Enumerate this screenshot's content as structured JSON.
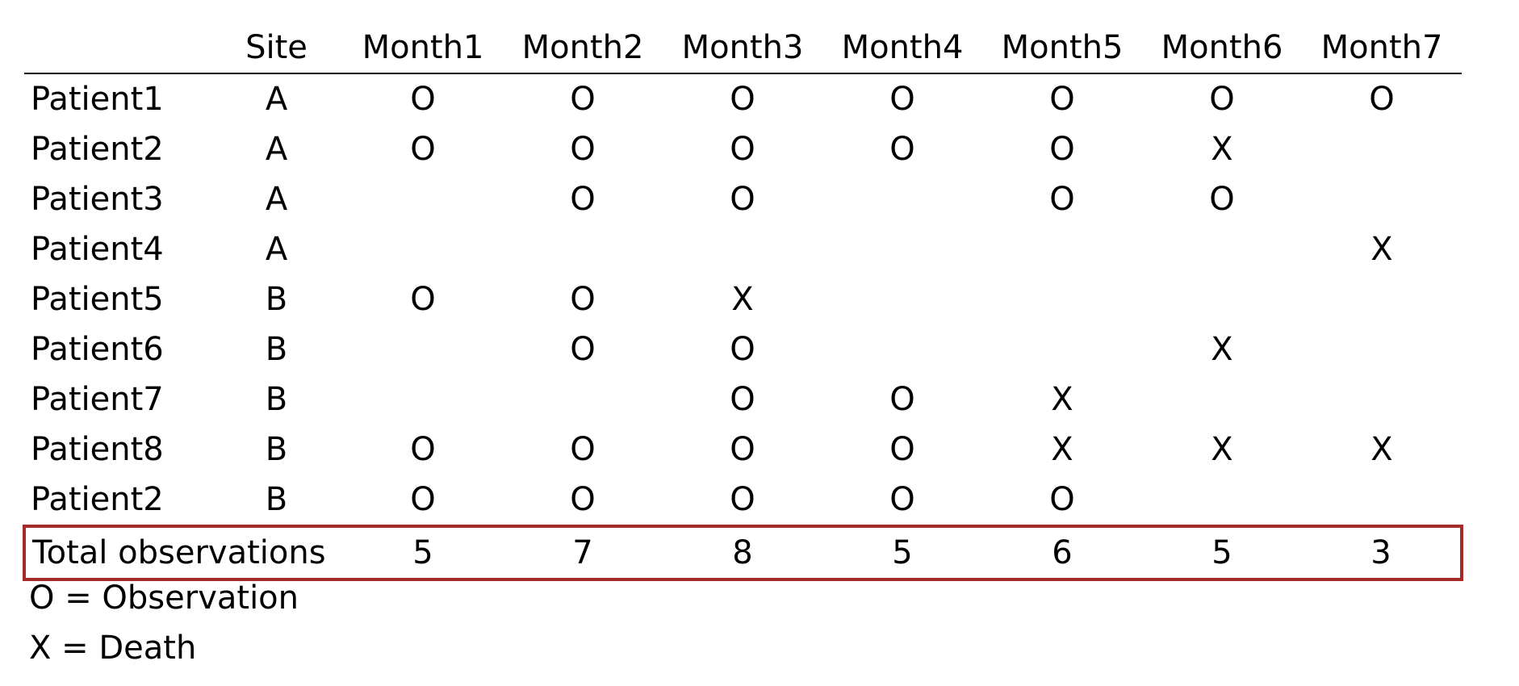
{
  "table": {
    "corner": "",
    "site_header": "Site",
    "months": [
      "Month1",
      "Month2",
      "Month3",
      "Month4",
      "Month5",
      "Month6",
      "Month7"
    ],
    "rows": [
      {
        "patient": "Patient1",
        "site": "A",
        "cells": [
          "O",
          "O",
          "O",
          "O",
          "O",
          "O",
          "O"
        ]
      },
      {
        "patient": "Patient2",
        "site": "A",
        "cells": [
          "O",
          "O",
          "O",
          "O",
          "O",
          "X",
          ""
        ]
      },
      {
        "patient": "Patient3",
        "site": "A",
        "cells": [
          "",
          "O",
          "O",
          "",
          "O",
          "O",
          ""
        ]
      },
      {
        "patient": "Patient4",
        "site": "A",
        "cells": [
          "",
          "",
          "",
          "",
          "",
          "",
          "X"
        ]
      },
      {
        "patient": "Patient5",
        "site": "B",
        "cells": [
          "O",
          "O",
          "X",
          "",
          "",
          "",
          ""
        ]
      },
      {
        "patient": "Patient6",
        "site": "B",
        "cells": [
          "",
          "O",
          "O",
          "",
          "",
          "X",
          ""
        ]
      },
      {
        "patient": "Patient7",
        "site": "B",
        "cells": [
          "",
          "",
          "O",
          "O",
          "X",
          "",
          ""
        ]
      },
      {
        "patient": "Patient8",
        "site": "B",
        "cells": [
          "O",
          "O",
          "O",
          "O",
          "X",
          "X",
          "X"
        ]
      },
      {
        "patient": "Patient2",
        "site": "B",
        "cells": [
          "O",
          "O",
          "O",
          "O",
          "O",
          "",
          ""
        ]
      }
    ],
    "total": {
      "label": "Total observations",
      "values": [
        "5",
        "7",
        "8",
        "5",
        "6",
        "5",
        "3"
      ]
    }
  },
  "legend": {
    "observation": "O = Observation",
    "death": "X = Death"
  },
  "colors": {
    "highlight_border": "#a52a2a"
  }
}
